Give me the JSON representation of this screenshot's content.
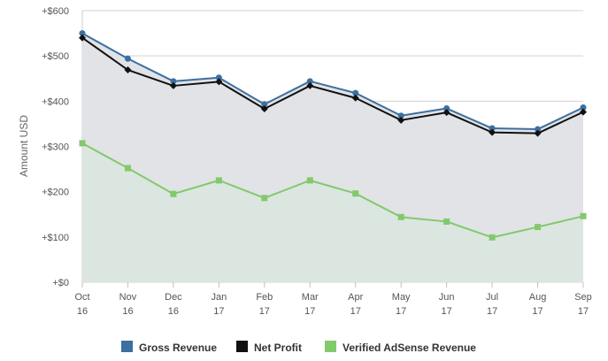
{
  "chart_data": {
    "type": "line",
    "categories": [
      [
        "Oct",
        "16"
      ],
      [
        "Nov",
        "16"
      ],
      [
        "Dec",
        "16"
      ],
      [
        "Jan",
        "17"
      ],
      [
        "Feb",
        "17"
      ],
      [
        "Mar",
        "17"
      ],
      [
        "Apr",
        "17"
      ],
      [
        "May",
        "17"
      ],
      [
        "Jun",
        "17"
      ],
      [
        "Jul",
        "17"
      ],
      [
        "Aug",
        "17"
      ],
      [
        "Sep",
        "17"
      ]
    ],
    "ylabel": "Amount USD",
    "ylim": [
      0,
      600
    ],
    "yticks": [
      0,
      100,
      200,
      300,
      400,
      500,
      600
    ],
    "ytick_labels": [
      "+$0",
      "+$100",
      "+$200",
      "+$300",
      "+$400",
      "+$500",
      "+$600"
    ],
    "grid": true,
    "legend_position": "bottom-center",
    "series": [
      {
        "name": "Gross Revenue",
        "color": "#3d6fa1",
        "marker": "circle",
        "values": [
          550,
          494,
          444,
          452,
          393,
          444,
          418,
          368,
          384,
          340,
          338,
          386
        ]
      },
      {
        "name": "Net Profit",
        "color": "#111111",
        "marker": "diamond",
        "values": [
          540,
          469,
          434,
          443,
          383,
          434,
          407,
          358,
          375,
          331,
          329,
          376
        ]
      },
      {
        "name": "Verified AdSense Revenue",
        "color": "#82c96c",
        "marker": "square",
        "values": [
          307,
          252,
          195,
          225,
          186,
          225,
          196,
          144,
          134,
          99,
          122,
          146
        ]
      }
    ],
    "fill_colors": {
      "upper_area": "#e1e3e6",
      "lower_area": "#dce6e0"
    }
  }
}
